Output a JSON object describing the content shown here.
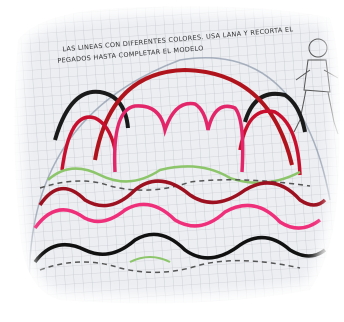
{
  "instructions": {
    "line1": "LAS LINEAS CON DIFERENTES COLORES. USA LANA Y RECORTA EL",
    "line2": "PEGADOS HASTA COMPLETAR EL MODELO"
  }
}
